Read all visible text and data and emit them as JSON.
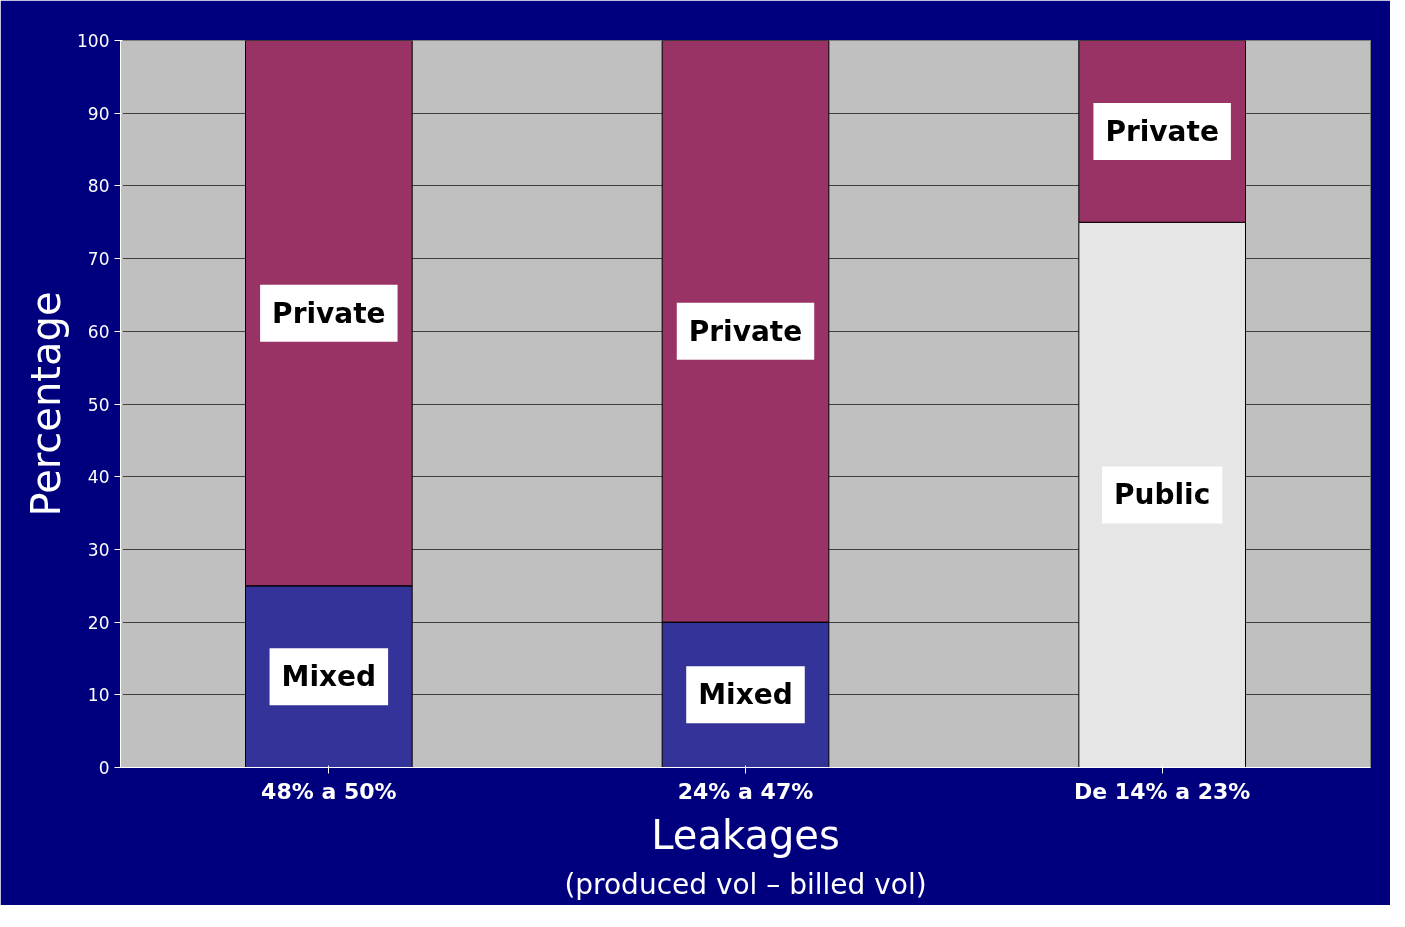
{
  "chart_data": {
    "type": "bar",
    "stacked": true,
    "xlabel": "Leakages",
    "ylabel": "Percentage",
    "annotations": [
      "(produced vol – billed vol)"
    ],
    "categories": [
      "48% a 50%",
      "24% a 47%",
      "De 14% a 23%"
    ],
    "series": [
      {
        "name": "Mixed",
        "color": "#333399",
        "values": [
          25,
          20,
          0
        ]
      },
      {
        "name": "Public",
        "color": "#e6e6e6",
        "values": [
          0,
          0,
          75
        ]
      },
      {
        "name": "Private",
        "color": "#993366",
        "values": [
          75,
          80,
          25
        ]
      }
    ],
    "ylim": [
      0,
      100
    ],
    "yticks": [
      0,
      10,
      20,
      30,
      40,
      50,
      60,
      70,
      80,
      90,
      100
    ],
    "grid": "y"
  }
}
